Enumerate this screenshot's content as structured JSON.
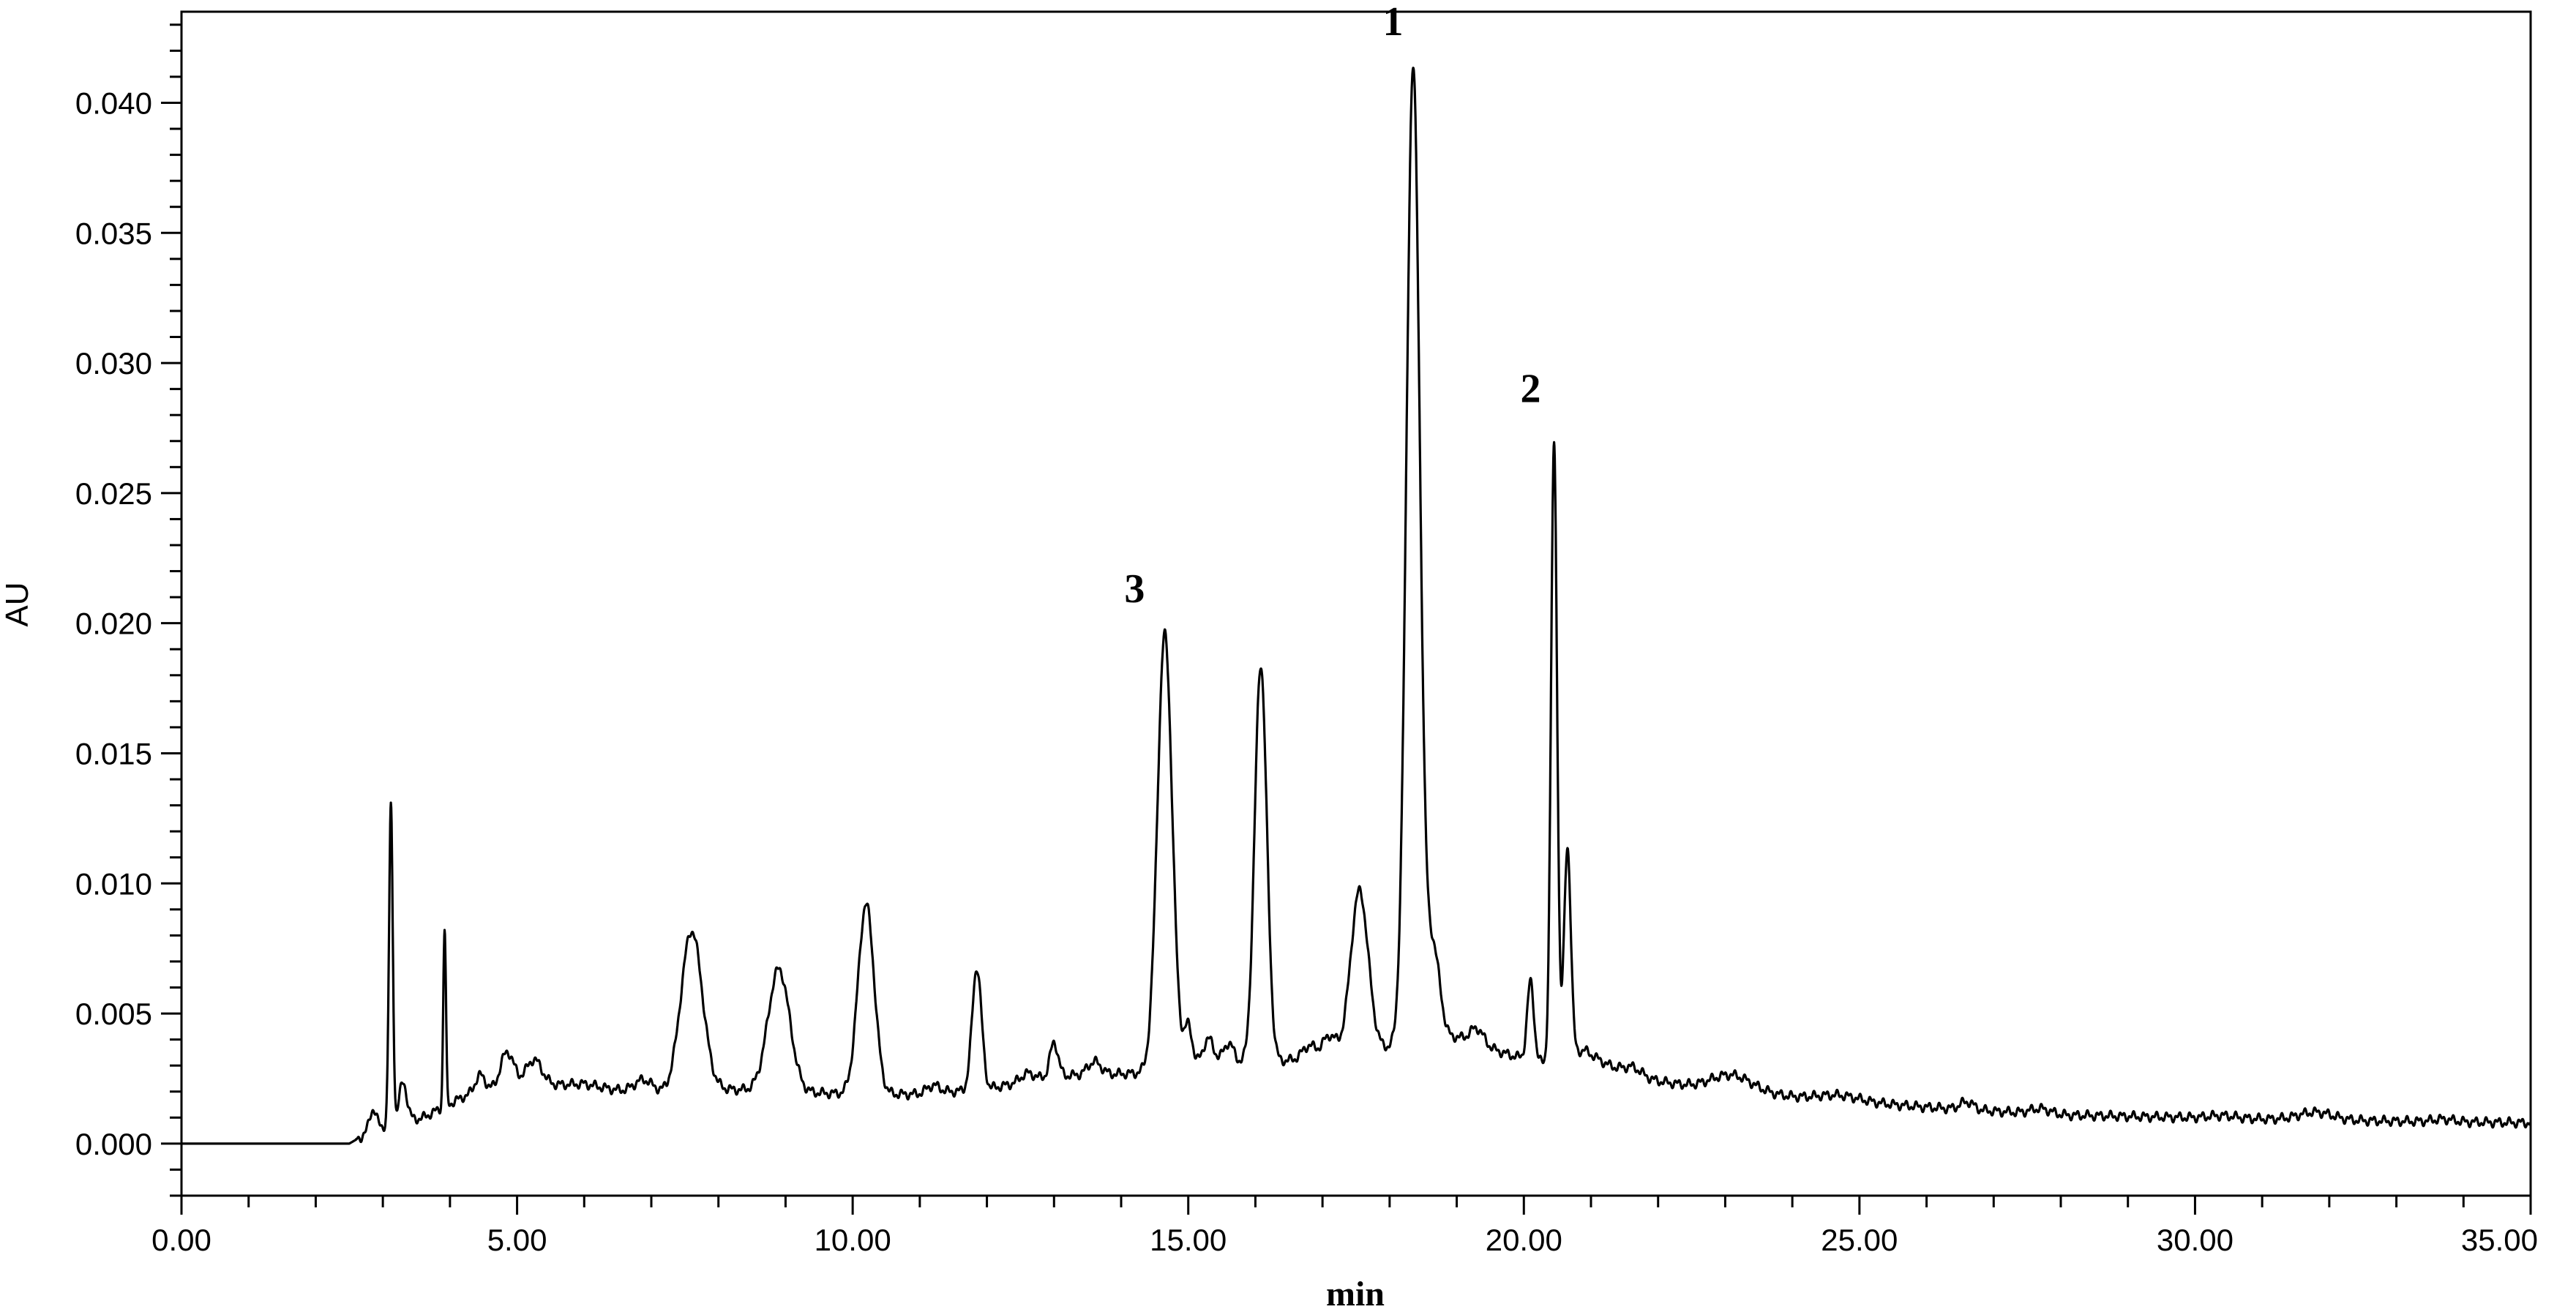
{
  "chart_data": {
    "type": "line",
    "xlabel": "min",
    "ylabel": "AU",
    "xlim": [
      0,
      35
    ],
    "ylim": [
      -0.002,
      0.0435
    ],
    "x_ticks": [
      {
        "value": 0,
        "label": "0.00"
      },
      {
        "value": 5,
        "label": "5.00"
      },
      {
        "value": 10,
        "label": "10.00"
      },
      {
        "value": 15,
        "label": "15.00"
      },
      {
        "value": 20,
        "label": "20.00"
      },
      {
        "value": 25,
        "label": "25.00"
      },
      {
        "value": 30,
        "label": "30.00"
      },
      {
        "value": 35,
        "label": "35.00"
      }
    ],
    "x_minor_step": 1,
    "y_ticks": [
      {
        "value": 0.0,
        "label": "0.000"
      },
      {
        "value": 0.005,
        "label": "0.005"
      },
      {
        "value": 0.01,
        "label": "0.010"
      },
      {
        "value": 0.015,
        "label": "0.015"
      },
      {
        "value": 0.02,
        "label": "0.020"
      },
      {
        "value": 0.025,
        "label": "0.025"
      },
      {
        "value": 0.03,
        "label": "0.030"
      },
      {
        "value": 0.035,
        "label": "0.035"
      },
      {
        "value": 0.04,
        "label": "0.040"
      }
    ],
    "y_minor_step": 0.001,
    "grid": false,
    "line_color": "#000000",
    "baseline": [
      [
        0,
        0.0
      ],
      [
        2.5,
        0.0
      ],
      [
        2.9,
        0.0006
      ],
      [
        3.6,
        0.001
      ],
      [
        4.2,
        0.0018
      ],
      [
        5.0,
        0.0022
      ],
      [
        6.0,
        0.0023
      ],
      [
        7.0,
        0.0018
      ],
      [
        8.0,
        0.0021
      ],
      [
        9.0,
        0.002
      ],
      [
        10.0,
        0.0019
      ],
      [
        11.0,
        0.0019
      ],
      [
        12.0,
        0.0021
      ],
      [
        13.0,
        0.0026
      ],
      [
        14.2,
        0.0027
      ],
      [
        15.0,
        0.003
      ],
      [
        16.0,
        0.0031
      ],
      [
        17.0,
        0.0033
      ],
      [
        18.0,
        0.0037
      ],
      [
        19.0,
        0.0041
      ],
      [
        19.8,
        0.0034
      ],
      [
        20.3,
        0.0031
      ],
      [
        20.9,
        0.0036
      ],
      [
        21.5,
        0.0026
      ],
      [
        22.5,
        0.0022
      ],
      [
        24,
        0.0018
      ],
      [
        26,
        0.0014
      ],
      [
        28,
        0.0011
      ],
      [
        30,
        0.001
      ],
      [
        32,
        0.0009
      ],
      [
        35,
        0.0008
      ]
    ],
    "peaks": [
      {
        "rt": 2.85,
        "height": 0.0008,
        "width": 0.05
      },
      {
        "rt": 3.12,
        "height": 0.0122,
        "width": 0.028
      },
      {
        "rt": 3.3,
        "height": 0.0015,
        "width": 0.06
      },
      {
        "rt": 3.92,
        "height": 0.0068,
        "width": 0.02
      },
      {
        "rt": 4.45,
        "height": 0.0007,
        "width": 0.08
      },
      {
        "rt": 4.85,
        "height": 0.0014,
        "width": 0.1
      },
      {
        "rt": 5.25,
        "height": 0.001,
        "width": 0.12
      },
      {
        "rt": 6.9,
        "height": 0.0006,
        "width": 0.15
      },
      {
        "rt": 7.6,
        "height": 0.0062,
        "width": 0.16
      },
      {
        "rt": 8.9,
        "height": 0.0047,
        "width": 0.16
      },
      {
        "rt": 10.2,
        "height": 0.0073,
        "width": 0.12
      },
      {
        "rt": 11.2,
        "height": 0.0003,
        "width": 0.1
      },
      {
        "rt": 11.85,
        "height": 0.0047,
        "width": 0.07
      },
      {
        "rt": 12.6,
        "height": 0.0003,
        "width": 0.1
      },
      {
        "rt": 13.0,
        "height": 0.0013,
        "width": 0.06
      },
      {
        "rt": 13.6,
        "height": 0.0005,
        "width": 0.1
      },
      {
        "rt": 14.65,
        "height": 0.0167,
        "width": 0.11
      },
      {
        "rt": 15.0,
        "height": 0.0015,
        "width": 0.06
      },
      {
        "rt": 15.3,
        "height": 0.001,
        "width": 0.08
      },
      {
        "rt": 15.6,
        "height": 0.0008,
        "width": 0.08
      },
      {
        "rt": 16.08,
        "height": 0.0153,
        "width": 0.09
      },
      {
        "rt": 16.8,
        "height": 0.0005,
        "width": 0.1
      },
      {
        "rt": 17.1,
        "height": 0.0008,
        "width": 0.1
      },
      {
        "rt": 17.55,
        "height": 0.0062,
        "width": 0.13
      },
      {
        "rt": 18.35,
        "height": 0.0375,
        "width": 0.1
      },
      {
        "rt": 18.65,
        "height": 0.0035,
        "width": 0.1
      },
      {
        "rt": 19.3,
        "height": 0.0006,
        "width": 0.1
      },
      {
        "rt": 20.1,
        "height": 0.003,
        "width": 0.05
      },
      {
        "rt": 20.45,
        "height": 0.0236,
        "width": 0.045
      },
      {
        "rt": 20.65,
        "height": 0.008,
        "width": 0.05
      },
      {
        "rt": 21.6,
        "height": 0.0004,
        "width": 0.15
      },
      {
        "rt": 23.1,
        "height": 0.0006,
        "width": 0.3
      },
      {
        "rt": 24.7,
        "height": 0.0002,
        "width": 0.3
      },
      {
        "rt": 26.6,
        "height": 0.0003,
        "width": 0.1
      },
      {
        "rt": 27.7,
        "height": 0.0002,
        "width": 0.15
      },
      {
        "rt": 30.4,
        "height": 0.0001,
        "width": 0.2
      },
      {
        "rt": 31.8,
        "height": 0.0003,
        "width": 0.25
      },
      {
        "rt": 33.7,
        "height": 0.0001,
        "width": 0.15
      }
    ],
    "annotations": [
      {
        "text": "1",
        "x": 18.05,
        "y": 0.0426
      },
      {
        "text": "2",
        "x": 20.1,
        "y": 0.0285
      },
      {
        "text": "3",
        "x": 14.2,
        "y": 0.0208
      }
    ]
  }
}
